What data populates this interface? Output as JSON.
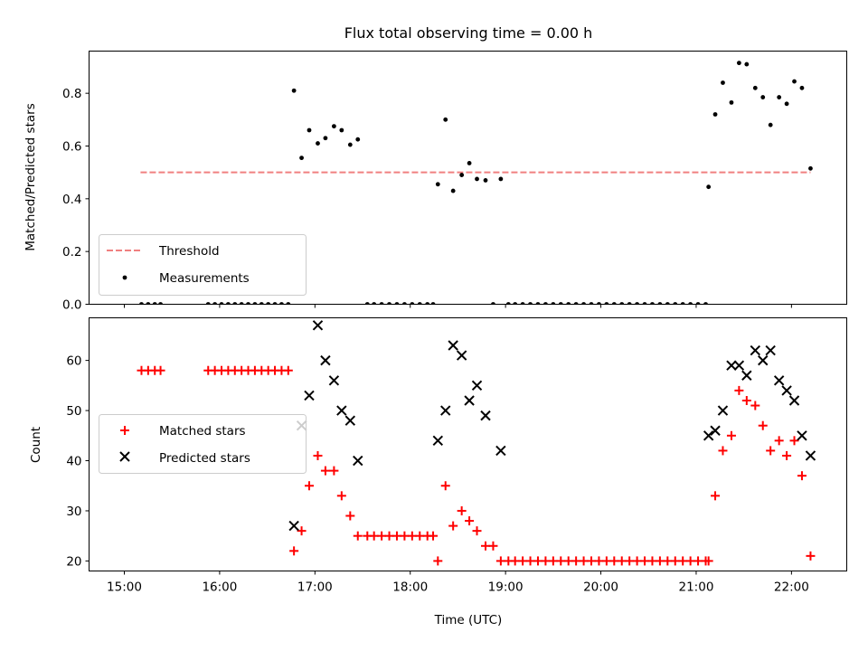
{
  "chart_data": [
    {
      "type": "scatter",
      "title": "Flux total observing time = 0.00 h",
      "xlabel": "",
      "ylabel": "Matched/Predicted stars",
      "ylim": [
        0,
        0.96
      ],
      "yticks": [
        "0.0",
        "0.2",
        "0.4",
        "0.6",
        "0.8"
      ],
      "xlim": [
        14.63,
        22.58
      ],
      "legend_position": "lower-left",
      "threshold": {
        "name": "Threshold",
        "value": 0.5,
        "x_start": 15.17,
        "x_end": 22.2,
        "color": "#f08080"
      },
      "series": [
        {
          "name": "Measurements",
          "color": "#000000",
          "points": [
            [
              15.18,
              0
            ],
            [
              15.25,
              0
            ],
            [
              15.32,
              0
            ],
            [
              15.38,
              0
            ],
            [
              15.88,
              0
            ],
            [
              15.95,
              0
            ],
            [
              16.02,
              0
            ],
            [
              16.09,
              0
            ],
            [
              16.16,
              0
            ],
            [
              16.23,
              0
            ],
            [
              16.3,
              0
            ],
            [
              16.37,
              0
            ],
            [
              16.44,
              0
            ],
            [
              16.51,
              0
            ],
            [
              16.58,
              0
            ],
            [
              16.65,
              0
            ],
            [
              16.72,
              0
            ],
            [
              16.78,
              0.81
            ],
            [
              16.86,
              0.555
            ],
            [
              16.94,
              0.66
            ],
            [
              17.03,
              0.61
            ],
            [
              17.11,
              0.63
            ],
            [
              17.2,
              0.675
            ],
            [
              17.28,
              0.66
            ],
            [
              17.37,
              0.605
            ],
            [
              17.45,
              0.625
            ],
            [
              17.55,
              0
            ],
            [
              17.62,
              0
            ],
            [
              17.7,
              0
            ],
            [
              17.78,
              0
            ],
            [
              17.86,
              0
            ],
            [
              17.94,
              0
            ],
            [
              18.02,
              0
            ],
            [
              18.1,
              0
            ],
            [
              18.18,
              0
            ],
            [
              18.24,
              0
            ],
            [
              18.29,
              0.455
            ],
            [
              18.37,
              0.7
            ],
            [
              18.45,
              0.43
            ],
            [
              18.54,
              0.49
            ],
            [
              18.62,
              0.535
            ],
            [
              18.7,
              0.475
            ],
            [
              18.79,
              0.47
            ],
            [
              18.87,
              0
            ],
            [
              18.95,
              0.475
            ],
            [
              19.03,
              0
            ],
            [
              19.1,
              0
            ],
            [
              19.18,
              0
            ],
            [
              19.26,
              0
            ],
            [
              19.34,
              0
            ],
            [
              19.42,
              0
            ],
            [
              19.5,
              0
            ],
            [
              19.58,
              0
            ],
            [
              19.66,
              0
            ],
            [
              19.74,
              0
            ],
            [
              19.82,
              0
            ],
            [
              19.9,
              0
            ],
            [
              19.98,
              0
            ],
            [
              20.06,
              0
            ],
            [
              20.14,
              0
            ],
            [
              20.22,
              0
            ],
            [
              20.3,
              0
            ],
            [
              20.38,
              0
            ],
            [
              20.46,
              0
            ],
            [
              20.54,
              0
            ],
            [
              20.62,
              0
            ],
            [
              20.7,
              0
            ],
            [
              20.78,
              0
            ],
            [
              20.86,
              0
            ],
            [
              20.94,
              0
            ],
            [
              21.02,
              0
            ],
            [
              21.1,
              0
            ],
            [
              21.13,
              0.445
            ],
            [
              21.2,
              0.72
            ],
            [
              21.28,
              0.84
            ],
            [
              21.37,
              0.765
            ],
            [
              21.45,
              0.915
            ],
            [
              21.53,
              0.91
            ],
            [
              21.62,
              0.82
            ],
            [
              21.7,
              0.785
            ],
            [
              21.78,
              0.68
            ],
            [
              21.87,
              0.785
            ],
            [
              21.95,
              0.76
            ],
            [
              22.03,
              0.845
            ],
            [
              22.11,
              0.82
            ],
            [
              22.2,
              0.515
            ]
          ]
        }
      ]
    },
    {
      "type": "scatter",
      "title": "",
      "xlabel": "Time (UTC)",
      "ylabel": "Count",
      "ylim": [
        18,
        68.5
      ],
      "yticks": [
        "20",
        "30",
        "40",
        "50",
        "60"
      ],
      "xlim": [
        14.63,
        22.58
      ],
      "xticks": [
        "15:00",
        "16:00",
        "17:00",
        "18:00",
        "19:00",
        "20:00",
        "21:00",
        "22:00"
      ],
      "legend_position": "center-left",
      "series": [
        {
          "name": "Matched stars",
          "color": "#ff0000",
          "marker": "plus",
          "points": [
            [
              15.18,
              58
            ],
            [
              15.25,
              58
            ],
            [
              15.32,
              58
            ],
            [
              15.38,
              58
            ],
            [
              15.88,
              58
            ],
            [
              15.95,
              58
            ],
            [
              16.02,
              58
            ],
            [
              16.09,
              58
            ],
            [
              16.16,
              58
            ],
            [
              16.23,
              58
            ],
            [
              16.3,
              58
            ],
            [
              16.37,
              58
            ],
            [
              16.44,
              58
            ],
            [
              16.51,
              58
            ],
            [
              16.58,
              58
            ],
            [
              16.65,
              58
            ],
            [
              16.72,
              58
            ],
            [
              16.78,
              22
            ],
            [
              16.86,
              26
            ],
            [
              16.94,
              35
            ],
            [
              17.03,
              41
            ],
            [
              17.11,
              38
            ],
            [
              17.2,
              38
            ],
            [
              17.28,
              33
            ],
            [
              17.37,
              29
            ],
            [
              17.45,
              25
            ],
            [
              17.55,
              25
            ],
            [
              17.62,
              25
            ],
            [
              17.7,
              25
            ],
            [
              17.78,
              25
            ],
            [
              17.86,
              25
            ],
            [
              17.94,
              25
            ],
            [
              18.02,
              25
            ],
            [
              18.1,
              25
            ],
            [
              18.18,
              25
            ],
            [
              18.24,
              25
            ],
            [
              18.29,
              20
            ],
            [
              18.37,
              35
            ],
            [
              18.45,
              27
            ],
            [
              18.54,
              30
            ],
            [
              18.62,
              28
            ],
            [
              18.7,
              26
            ],
            [
              18.79,
              23
            ],
            [
              18.87,
              23
            ],
            [
              18.95,
              20
            ],
            [
              19.03,
              20
            ],
            [
              19.1,
              20
            ],
            [
              19.18,
              20
            ],
            [
              19.26,
              20
            ],
            [
              19.34,
              20
            ],
            [
              19.42,
              20
            ],
            [
              19.5,
              20
            ],
            [
              19.58,
              20
            ],
            [
              19.66,
              20
            ],
            [
              19.74,
              20
            ],
            [
              19.82,
              20
            ],
            [
              19.9,
              20
            ],
            [
              19.98,
              20
            ],
            [
              20.06,
              20
            ],
            [
              20.14,
              20
            ],
            [
              20.22,
              20
            ],
            [
              20.3,
              20
            ],
            [
              20.38,
              20
            ],
            [
              20.46,
              20
            ],
            [
              20.54,
              20
            ],
            [
              20.62,
              20
            ],
            [
              20.7,
              20
            ],
            [
              20.78,
              20
            ],
            [
              20.86,
              20
            ],
            [
              20.94,
              20
            ],
            [
              21.02,
              20
            ],
            [
              21.1,
              20
            ],
            [
              21.13,
              20
            ],
            [
              21.2,
              33
            ],
            [
              21.28,
              42
            ],
            [
              21.37,
              45
            ],
            [
              21.45,
              54
            ],
            [
              21.53,
              52
            ],
            [
              21.62,
              51
            ],
            [
              21.7,
              47
            ],
            [
              21.78,
              42
            ],
            [
              21.87,
              44
            ],
            [
              21.95,
              41
            ],
            [
              22.03,
              44
            ],
            [
              22.11,
              37
            ],
            [
              22.2,
              21
            ]
          ]
        },
        {
          "name": "Predicted stars",
          "color": "#000000",
          "marker": "x",
          "points": [
            [
              16.78,
              27
            ],
            [
              16.86,
              47
            ],
            [
              16.94,
              53
            ],
            [
              17.03,
              67
            ],
            [
              17.11,
              60
            ],
            [
              17.2,
              56
            ],
            [
              17.28,
              50
            ],
            [
              17.37,
              48
            ],
            [
              17.45,
              40
            ],
            [
              18.29,
              44
            ],
            [
              18.37,
              50
            ],
            [
              18.45,
              63
            ],
            [
              18.54,
              61
            ],
            [
              18.62,
              52
            ],
            [
              18.7,
              55
            ],
            [
              18.79,
              49
            ],
            [
              18.95,
              42
            ],
            [
              21.13,
              45
            ],
            [
              21.2,
              46
            ],
            [
              21.28,
              50
            ],
            [
              21.37,
              59
            ],
            [
              21.45,
              59
            ],
            [
              21.53,
              57
            ],
            [
              21.62,
              62
            ],
            [
              21.7,
              60
            ],
            [
              21.78,
              62
            ],
            [
              21.87,
              56
            ],
            [
              21.95,
              54
            ],
            [
              22.03,
              52
            ],
            [
              22.11,
              45
            ],
            [
              22.2,
              41
            ]
          ]
        }
      ]
    }
  ]
}
